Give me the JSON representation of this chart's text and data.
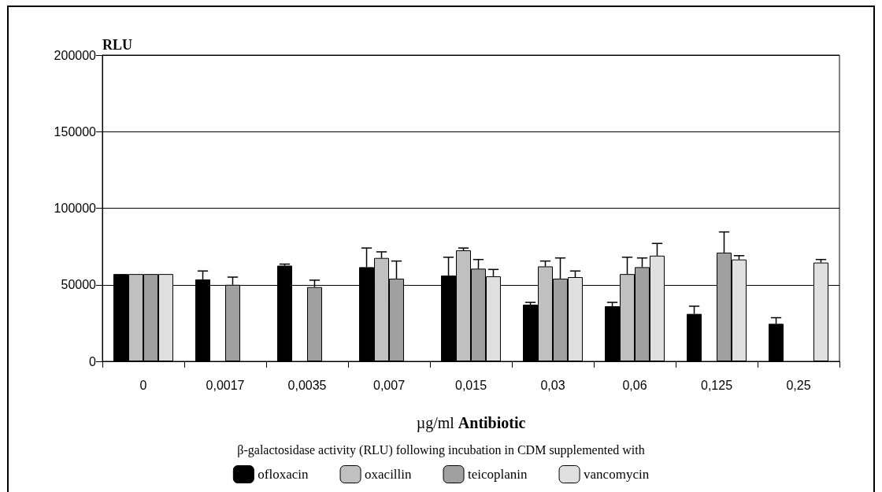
{
  "chart_data": {
    "type": "bar",
    "ylabel": "RLU",
    "xlabel": "µg/ml Antibiotic",
    "legend_title": "β-galactosidase activity (RLU) following incubation in CDM supplemented with",
    "categories": [
      "0",
      "0,0017",
      "0,0035",
      "0,007",
      "0,015",
      "0,03",
      "0,06",
      "0,125",
      "0,25"
    ],
    "series": [
      {
        "name": "ofloxacin",
        "color": "#000000",
        "values": [
          57000,
          53500,
          62500,
          61500,
          56000,
          37000,
          36000,
          31000,
          24500
        ],
        "errors": [
          null,
          [
            53500,
            59000
          ],
          [
            62500,
            63500
          ],
          [
            61500,
            74000
          ],
          [
            56000,
            68000
          ],
          [
            37000,
            38500
          ],
          [
            36000,
            38500
          ],
          [
            31000,
            36000
          ],
          [
            24500,
            28500
          ]
        ]
      },
      {
        "name": "oxacillin",
        "color": "#c0c0c0",
        "values": [
          57000,
          null,
          null,
          67500,
          72500,
          62000,
          57000,
          null,
          null
        ],
        "errors": [
          null,
          null,
          null,
          [
            67500,
            71500
          ],
          [
            72500,
            74000
          ],
          [
            62000,
            65500
          ],
          [
            57000,
            68000
          ],
          null,
          null
        ]
      },
      {
        "name": "teicoplanin",
        "color": "#a0a0a0",
        "values": [
          57000,
          50000,
          48500,
          54000,
          60500,
          54000,
          61500,
          71000,
          null
        ],
        "errors": [
          null,
          [
            50000,
            55000
          ],
          [
            48500,
            53000
          ],
          [
            54000,
            65500
          ],
          [
            60500,
            66500
          ],
          [
            54000,
            67500
          ],
          [
            61500,
            67500
          ],
          [
            71000,
            84500
          ],
          null
        ]
      },
      {
        "name": "vancomycin",
        "color": "#e0e0e0",
        "values": [
          57000,
          null,
          null,
          null,
          55500,
          55000,
          69000,
          66500,
          64500
        ],
        "errors": [
          null,
          null,
          null,
          null,
          [
            55500,
            60000
          ],
          [
            55000,
            59000
          ],
          [
            69000,
            77000
          ],
          [
            66500,
            69000
          ],
          [
            64500,
            66500
          ]
        ]
      }
    ],
    "ylim": [
      0,
      200000
    ],
    "yticks": [
      0,
      50000,
      100000,
      150000,
      200000
    ],
    "grid": "y",
    "legend": "bottom"
  }
}
